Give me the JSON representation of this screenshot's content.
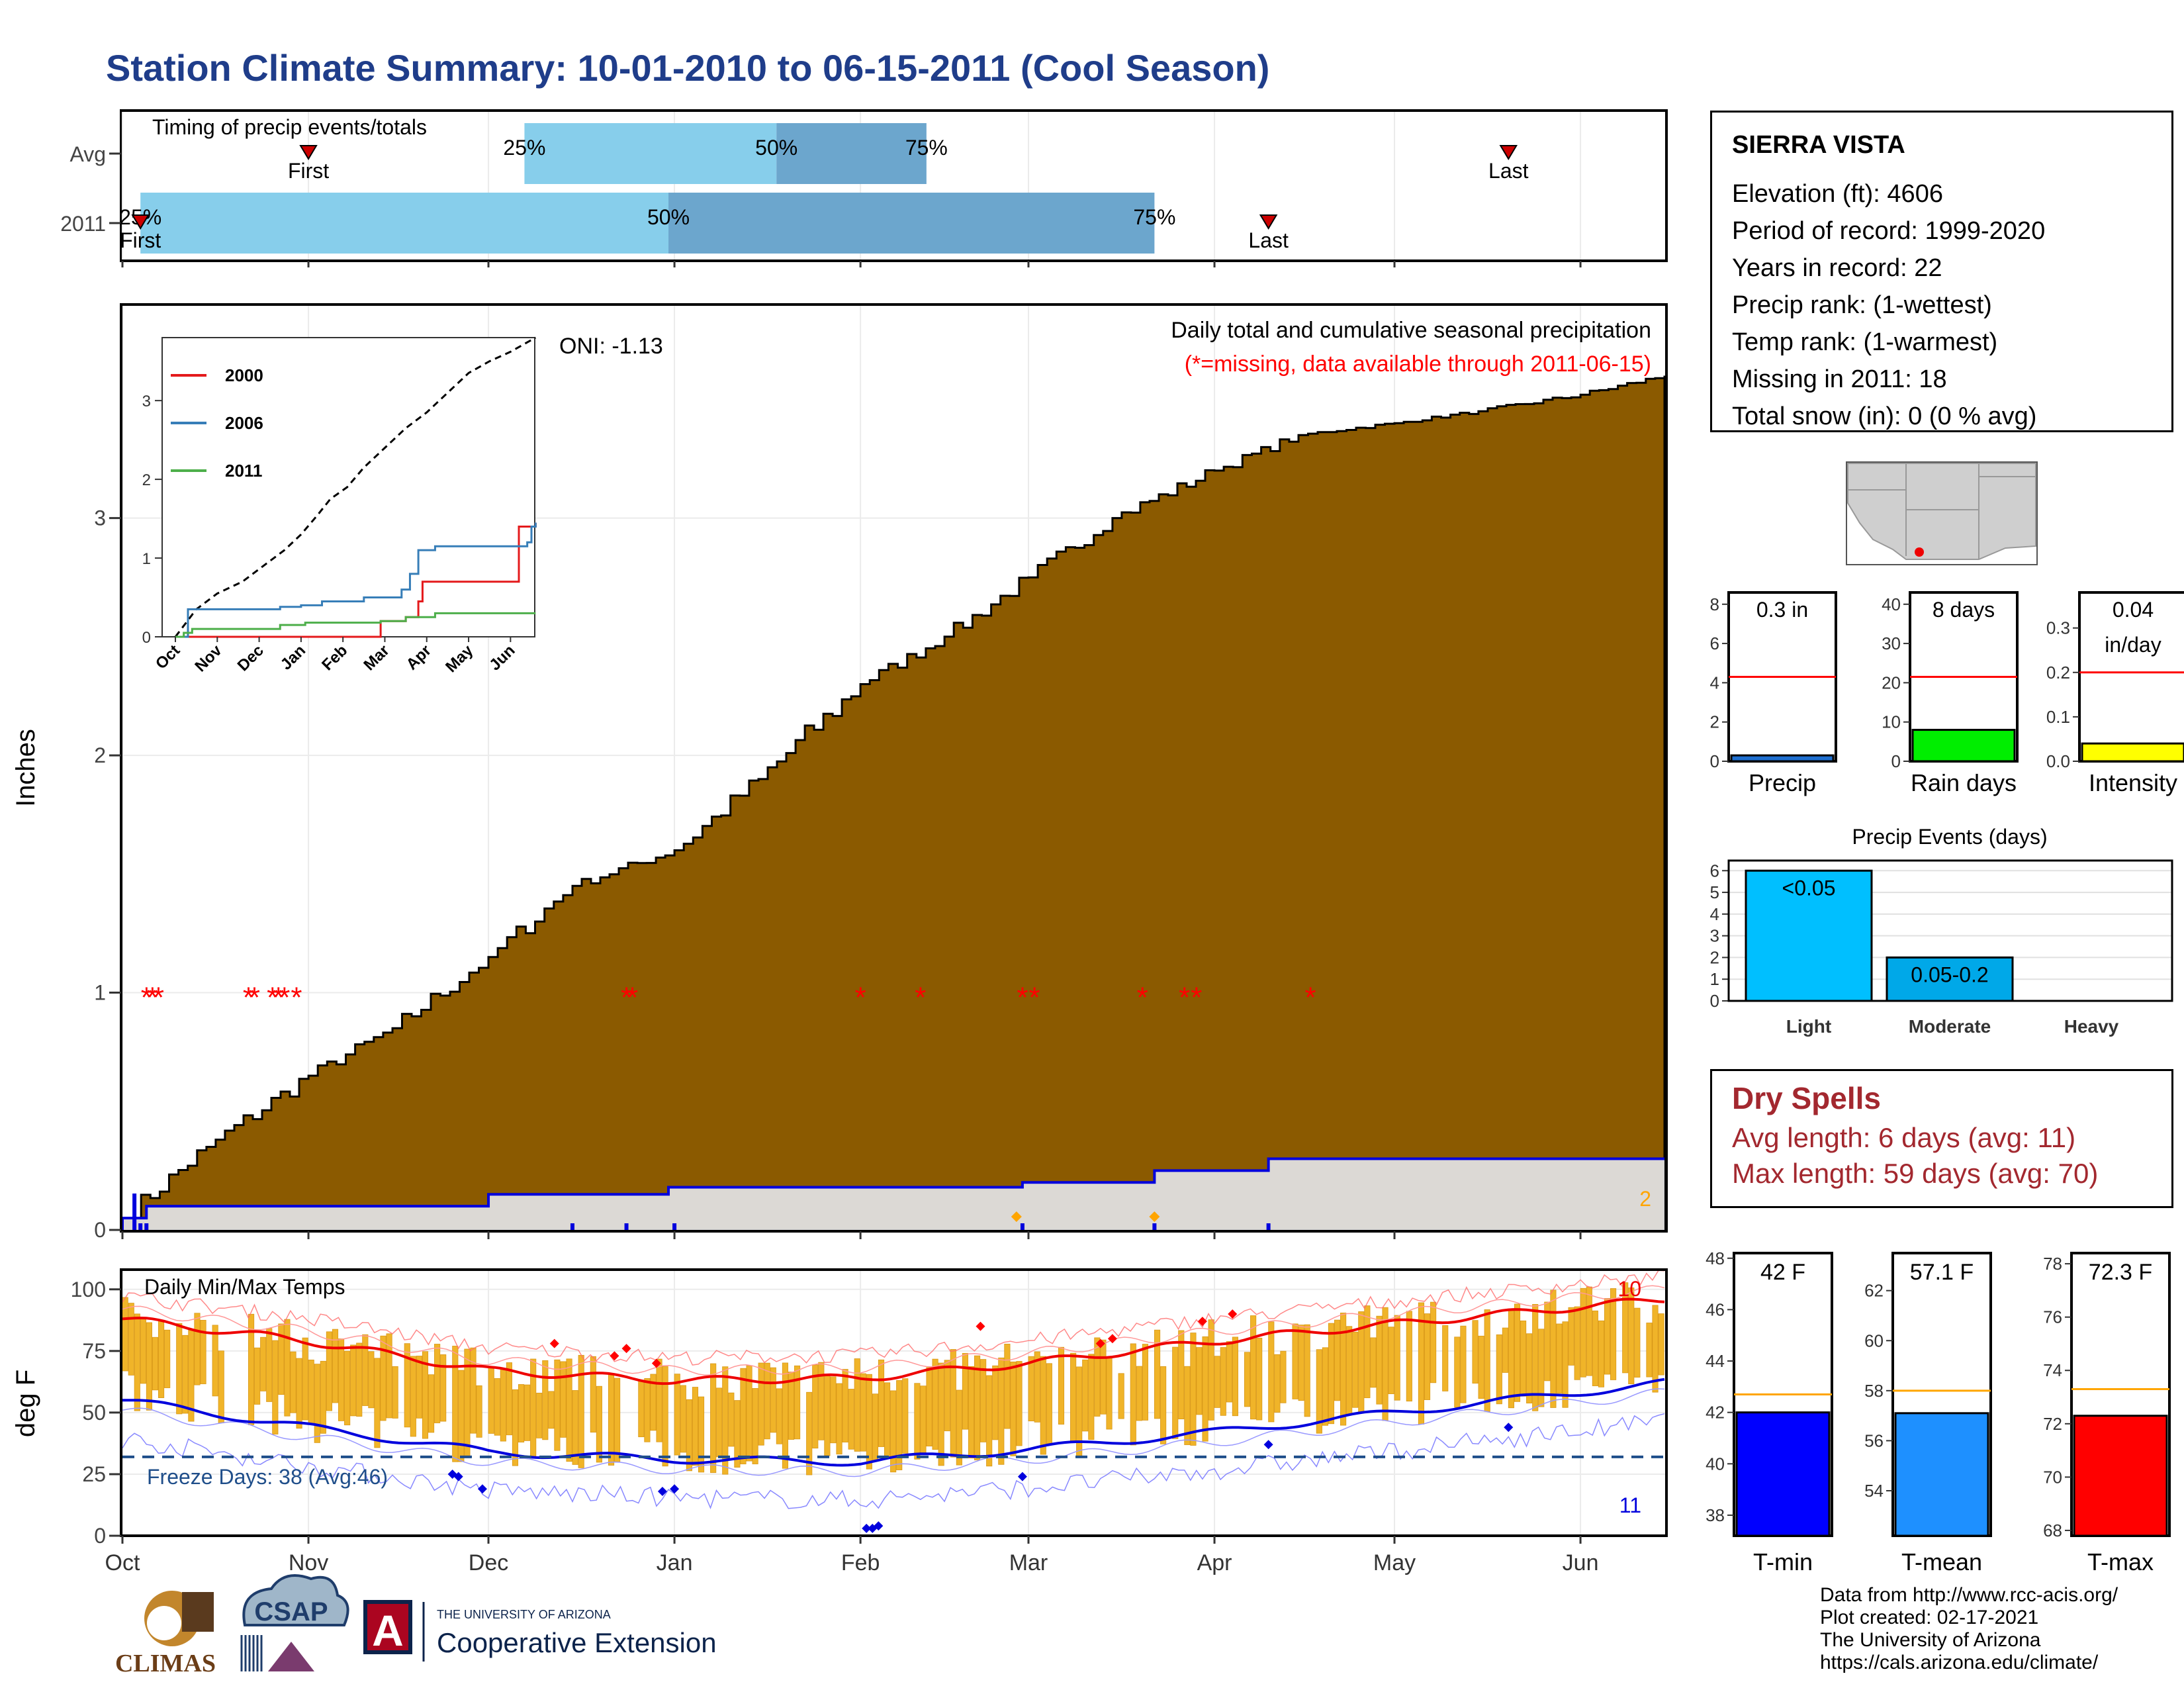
{
  "title": "Station Climate Summary: 10-01-2010 to 06-15-2011 (Cool Season)",
  "timing": {
    "heading": "Timing of precip events/totals",
    "rows": [
      "Avg",
      "2011"
    ],
    "pct_labels": [
      "25%",
      "50%",
      "75%"
    ],
    "first_label": "First",
    "last_label": "Last",
    "avg": {
      "first": "2010-11-01",
      "last": "2011-05-20",
      "p25": "2010-12-07",
      "p50": "2011-01-18",
      "p75": "2011-02-12"
    },
    "y2011": {
      "first": "2010-10-04",
      "last": "2011-04-10",
      "p25": "2010-10-04",
      "p50": "2010-12-31",
      "p75": "2011-03-22"
    }
  },
  "precip_panel": {
    "title": "Daily total and cumulative seasonal precipitation",
    "note": "(*=missing, data available through 2011-06-15)",
    "oni": "ONI: -1.13",
    "ylabel": "Inches",
    "corner_count": "2",
    "colors": {
      "cumulative": "#8b5a00",
      "avg_fill": "#e0e0e0",
      "avg_line": "#0000dd",
      "missing": "#ff0000"
    }
  },
  "inset": {
    "legend": [
      "2000",
      "2006",
      "2011"
    ],
    "legend_colors": [
      "#e41a1c",
      "#377eb8",
      "#4daf4a"
    ],
    "months": [
      "Oct",
      "Nov",
      "Dec",
      "Jan",
      "Feb",
      "Mar",
      "Apr",
      "May",
      "Jun"
    ],
    "yticks": [
      "0",
      "1",
      "2",
      "3"
    ]
  },
  "temp_panel": {
    "title": "Daily Min/Max Temps",
    "freeze_label": "Freeze Days: 38 (Avg:46)",
    "ylabel": "deg F",
    "count_high": "10",
    "count_low": "11",
    "yticks": [
      "0",
      "25",
      "50",
      "75",
      "100"
    ]
  },
  "x_months": [
    "Oct",
    "Nov",
    "Dec",
    "Jan",
    "Feb",
    "Mar",
    "Apr",
    "May",
    "Jun"
  ],
  "precip_yticks": [
    "0",
    "1",
    "2",
    "3"
  ],
  "station": {
    "name": "SIERRA VISTA",
    "lines": [
      "Elevation (ft): 4606",
      "Period of record: 1999-2020",
      "Years in record: 22",
      "Precip rank:  (1-wettest)",
      "Temp rank:  (1-warmest)",
      "Missing in 2011: 18",
      "Total snow (in): 0 (0 % avg)"
    ]
  },
  "mini_bars": [
    {
      "label": "Precip",
      "value_text": "0.3 in",
      "value": 0.3,
      "avg": 4.3,
      "ymax": 8.6,
      "ticks": [
        "0",
        "2",
        "4",
        "6",
        "8"
      ],
      "color": "#1e6fd0"
    },
    {
      "label": "Rain days",
      "value_text": "8 days",
      "value": 8,
      "avg": 21.5,
      "ymax": 43,
      "ticks": [
        "0",
        "10",
        "20",
        "30",
        "40"
      ],
      "color": "#00ee00"
    },
    {
      "label": "Intensity",
      "value_text": "0.04",
      "value_text2": "in/day",
      "value": 0.04,
      "avg": 0.2,
      "ymax": 0.38,
      "ticks": [
        "0.0",
        "0.1",
        "0.2",
        "0.3"
      ],
      "color": "#ffff00"
    }
  ],
  "precip_events": {
    "title": "Precip Events (days)",
    "categories": [
      "Light",
      "Moderate",
      "Heavy"
    ],
    "bar_labels": [
      "<0.05",
      "0.05-0.2",
      ""
    ],
    "values": [
      6,
      2,
      0
    ],
    "yticks": [
      "0",
      "1",
      "2",
      "3",
      "4",
      "5",
      "6"
    ],
    "colors": [
      "#00bfff",
      "#00a8e8",
      "#0090d0"
    ]
  },
  "dry_spells": {
    "title": "Dry Spells",
    "avg_line": "Avg length: 6 days (avg: 11)",
    "max_line": "Max length: 59 days (avg: 70)"
  },
  "temp_bars": [
    {
      "label": "T-min",
      "value_text": "42 F",
      "value": 42,
      "avg": 42.7,
      "ymin": 37.2,
      "ymax": 48.2,
      "ticks": [
        "38",
        "40",
        "42",
        "44",
        "46",
        "48"
      ],
      "color": "#0000ff"
    },
    {
      "label": "T-mean",
      "value_text": "57.1 F",
      "value": 57.1,
      "avg": 58,
      "ymin": 52.2,
      "ymax": 63.5,
      "ticks": [
        "54",
        "56",
        "58",
        "60",
        "62"
      ],
      "color": "#1e90ff"
    },
    {
      "label": "T-max",
      "value_text": "72.3 F",
      "value": 72.3,
      "avg": 73.3,
      "ymin": 67.8,
      "ymax": 78.4,
      "ticks": [
        "68",
        "70",
        "72",
        "74",
        "76",
        "78"
      ],
      "color": "#ff0000"
    }
  ],
  "credits": [
    "Data from http://www.rcc-acis.org/",
    "Plot created: 02-17-2021",
    "The University of Arizona",
    "https://cals.arizona.edu/climate/"
  ],
  "logos": {
    "climas": "CLIMAS",
    "csap": "CSAP",
    "ua_small": "THE UNIVERSITY OF ARIZONA",
    "ua_big": "Cooperative Extension",
    "ua_letter": "A"
  },
  "chart_data": {
    "type": "area",
    "x_range": [
      "2010-10-01",
      "2011-06-15"
    ],
    "series": [
      {
        "name": "",
        "x": [
          "2010-10-01",
          "2010-10-15",
          "2010-11-01",
          "2010-11-15",
          "2010-12-01",
          "2010-12-15",
          "2011-01-01",
          "2011-01-15",
          "2011-02-01",
          "2011-02-15",
          "2011-03-01",
          "2011-03-15",
          "2011-04-01",
          "2011-04-15",
          "2011-05-01",
          "2011-05-15",
          "2011-06-01",
          "2011-06-15"
        ],
        "values": [
          0.05,
          0.35,
          0.65,
          0.85,
          1.15,
          1.45,
          1.6,
          1.9,
          2.3,
          2.5,
          2.75,
          3.0,
          3.2,
          3.35,
          3.4,
          3.45,
          3.52,
          3.6
        ]
      },
      {
        "name": "",
        "x": [
          "2010-10-01",
          "2010-10-05",
          "2010-12-01",
          "2010-12-31",
          "2011-02-28",
          "2011-03-22",
          "2011-04-10",
          "2011-06-15"
        ],
        "values": [
          0.05,
          0.1,
          0.15,
          0.18,
          0.2,
          0.25,
          0.3,
          0.3
        ]
      }
    ],
    "ylim": [
      0,
      3.9
    ],
    "ylabel": "Inches",
    "temps": {
      "ylim": [
        0,
        108
      ],
      "smooth_max": [
        {
          "x": "2010-10-01",
          "y": 88
        },
        {
          "x": "2010-11-01",
          "y": 79
        },
        {
          "x": "2010-12-01",
          "y": 67
        },
        {
          "x": "2011-01-01",
          "y": 63
        },
        {
          "x": "2011-02-01",
          "y": 64
        },
        {
          "x": "2011-03-01",
          "y": 70
        },
        {
          "x": "2011-04-01",
          "y": 79
        },
        {
          "x": "2011-05-01",
          "y": 86
        },
        {
          "x": "2011-06-15",
          "y": 96
        }
      ],
      "smooth_min": [
        {
          "x": "2010-10-01",
          "y": 55
        },
        {
          "x": "2010-11-01",
          "y": 44
        },
        {
          "x": "2010-12-01",
          "y": 34
        },
        {
          "x": "2011-01-01",
          "y": 31
        },
        {
          "x": "2011-02-01",
          "y": 30
        },
        {
          "x": "2011-03-01",
          "y": 35
        },
        {
          "x": "2011-04-01",
          "y": 42
        },
        {
          "x": "2011-05-01",
          "y": 50
        },
        {
          "x": "2011-06-15",
          "y": 62
        }
      ],
      "freeze_line": 32
    }
  }
}
